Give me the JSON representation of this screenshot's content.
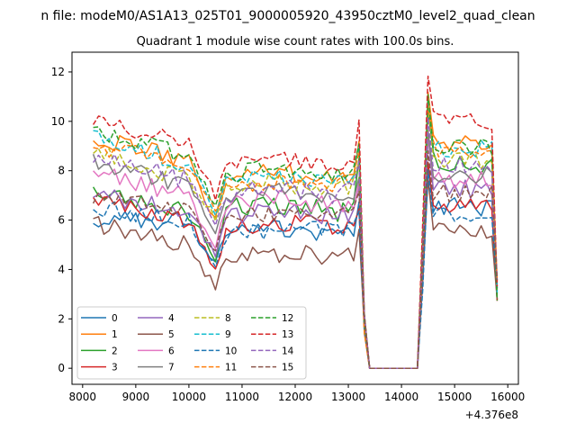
{
  "figure": {
    "suptitle": "n file: modeM0/AS1A13_025T01_9000005920_43950cztM0_level2_quad_clean",
    "title": "Quadrant 1 module wise count rates with 100.0s bins."
  },
  "chart_data": {
    "type": "line",
    "title": "Quadrant 1 module wise count rates with 100.0s bins.",
    "xlabel": "",
    "ylabel": "",
    "x_offset_label": "+4.376e8",
    "xlim": [
      7800,
      16200
    ],
    "ylim": [
      -0.65,
      12.8
    ],
    "xticks": [
      8000,
      9000,
      10000,
      11000,
      12000,
      13000,
      14000,
      15000,
      16000
    ],
    "xtick_labels": [
      "8000",
      "9000",
      "10000",
      "11000",
      "12000",
      "13000",
      "14000",
      "15000",
      "16000"
    ],
    "yticks": [
      0,
      2,
      4,
      6,
      8,
      10,
      12
    ],
    "ytick_labels": [
      "0",
      "2",
      "4",
      "6",
      "8",
      "10",
      "12"
    ],
    "grid": false,
    "legend_position": "lower-left",
    "legend_columns": 4,
    "series": [
      {
        "name": "0",
        "color": "#1f77b4",
        "dash": "solid",
        "levels": [
          6.1,
          5.9,
          4.2,
          5.5,
          5.8,
          5.5,
          5.3,
          5.4,
          6.6
        ]
      },
      {
        "name": "1",
        "color": "#ff7f0e",
        "dash": "solid",
        "levels": [
          9.3,
          8.4,
          6.0,
          7.6,
          8.0,
          7.8,
          7.6,
          7.8,
          9.2
        ]
      },
      {
        "name": "2",
        "color": "#2ca02c",
        "dash": "solid",
        "levels": [
          7.2,
          6.3,
          4.4,
          6.5,
          6.6,
          6.6,
          6.3,
          6.6,
          8.4
        ]
      },
      {
        "name": "3",
        "color": "#d62728",
        "dash": "solid",
        "levels": [
          6.9,
          6.0,
          4.0,
          5.6,
          5.8,
          5.9,
          5.6,
          5.8,
          6.5
        ]
      },
      {
        "name": "4",
        "color": "#9467bd",
        "dash": "solid",
        "levels": [
          7.0,
          6.4,
          4.6,
          6.2,
          6.3,
          6.3,
          6.1,
          6.3,
          7.3
        ]
      },
      {
        "name": "5",
        "color": "#8c564b",
        "dash": "solid",
        "levels": [
          5.9,
          5.0,
          3.2,
          4.6,
          4.5,
          4.6,
          4.5,
          4.6,
          5.5
        ]
      },
      {
        "name": "6",
        "color": "#e377c2",
        "dash": "solid",
        "levels": [
          8.1,
          6.9,
          4.8,
          6.6,
          6.9,
          6.7,
          6.6,
          6.8,
          7.6
        ]
      },
      {
        "name": "7",
        "color": "#7f7f7f",
        "dash": "solid",
        "levels": [
          8.4,
          7.4,
          5.4,
          6.9,
          7.2,
          7.0,
          6.8,
          7.0,
          7.8
        ]
      },
      {
        "name": "8",
        "color": "#bcbd22",
        "dash": "dashed",
        "levels": [
          8.9,
          7.6,
          6.0,
          7.3,
          7.5,
          7.4,
          7.2,
          7.4,
          8.4
        ]
      },
      {
        "name": "9",
        "color": "#17becf",
        "dash": "dashed",
        "levels": [
          9.5,
          8.2,
          6.4,
          7.6,
          7.9,
          7.7,
          7.6,
          7.9,
          8.9
        ]
      },
      {
        "name": "10",
        "color": "#1f77b4",
        "dash": "dashed",
        "levels": [
          6.5,
          5.9,
          4.0,
          5.3,
          5.6,
          5.6,
          5.5,
          5.7,
          6.3
        ]
      },
      {
        "name": "11",
        "color": "#ff7f0e",
        "dash": "dashed",
        "levels": [
          9.0,
          8.3,
          6.3,
          7.3,
          7.5,
          7.4,
          7.3,
          7.6,
          8.9
        ]
      },
      {
        "name": "12",
        "color": "#2ca02c",
        "dash": "dashed",
        "levels": [
          9.6,
          8.6,
          6.6,
          7.8,
          8.1,
          8.0,
          7.9,
          8.1,
          9.0
        ]
      },
      {
        "name": "13",
        "color": "#d62728",
        "dash": "dashed",
        "levels": [
          10.2,
          9.0,
          7.0,
          8.2,
          8.5,
          8.4,
          8.3,
          8.5,
          10.1
        ]
      },
      {
        "name": "14",
        "color": "#9467bd",
        "dash": "dashed",
        "levels": [
          8.6,
          7.6,
          5.9,
          7.0,
          7.3,
          7.2,
          7.0,
          7.3,
          8.3
        ]
      },
      {
        "name": "15",
        "color": "#8c564b",
        "dash": "dashed",
        "levels": [
          7.0,
          6.4,
          4.8,
          6.0,
          6.3,
          6.2,
          6.1,
          6.3,
          7.1
        ]
      }
    ]
  }
}
